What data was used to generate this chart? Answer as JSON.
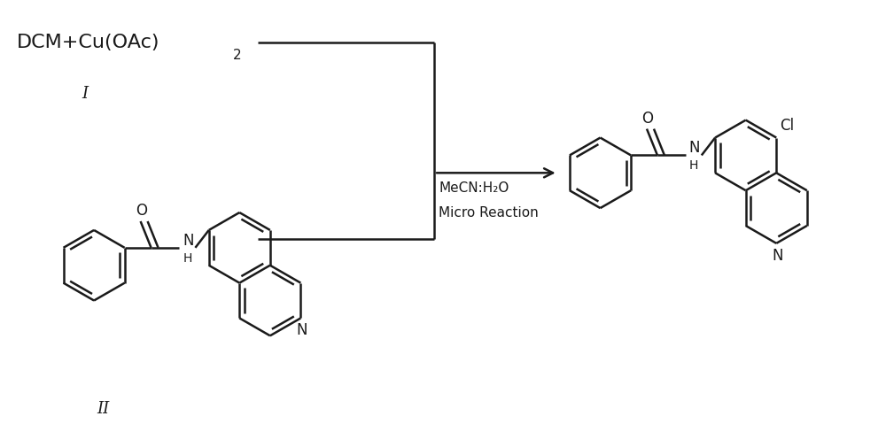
{
  "bg_color": "#ffffff",
  "line_color": "#1a1a1a",
  "lw": 1.8,
  "fig_w": 10.0,
  "fig_h": 5.05,
  "dpi": 100,
  "label_I": "I",
  "label_II": "II",
  "reagent_text": "DCM+Cu(OAc)",
  "reagent_sub": "2",
  "cond1": "MeCN:H₂O",
  "cond2": "Micro Reaction"
}
